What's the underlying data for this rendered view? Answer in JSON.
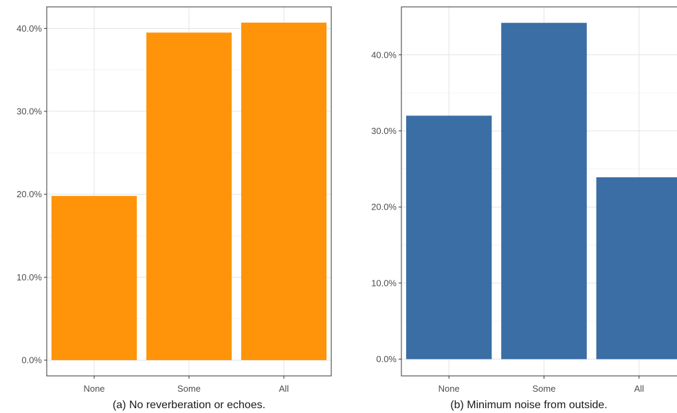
{
  "chart_data": [
    {
      "type": "bar",
      "categories": [
        "None",
        "Some",
        "All"
      ],
      "values": [
        19.8,
        39.5,
        40.7
      ],
      "caption": "(a) No reverberation or echoes.",
      "ylim": [
        -1.9,
        42.6
      ],
      "yticks": [
        0,
        10,
        20,
        30,
        40
      ],
      "ytick_labels": [
        "0.0%",
        "10.0%",
        "20.0%",
        "30.0%",
        "40.0%"
      ],
      "color": "#FF940A",
      "grid": true
    },
    {
      "type": "bar",
      "categories": [
        "None",
        "Some",
        "All"
      ],
      "values": [
        32.0,
        44.2,
        23.9
      ],
      "caption": "(b) Minimum noise from outside.",
      "ylim": [
        -2.2,
        46.3
      ],
      "yticks": [
        0,
        10,
        20,
        30,
        40
      ],
      "ytick_labels": [
        "0.0%",
        "10.0%",
        "20.0%",
        "30.0%",
        "40.0%"
      ],
      "color": "#3A6EA5",
      "grid": true
    }
  ]
}
